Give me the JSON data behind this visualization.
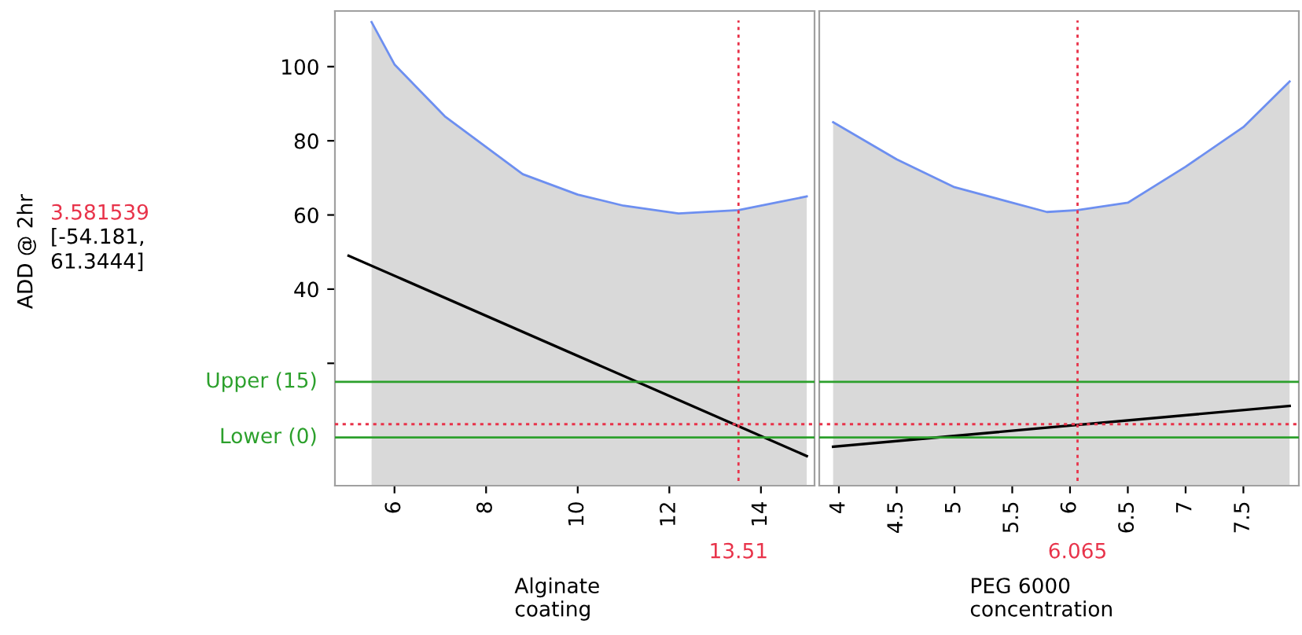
{
  "chart_data": [
    {
      "type": "line",
      "ylabel": "ADD @ 2hr",
      "xlabel": "Alginate\ncoating",
      "xlim": [
        4.7,
        15.17
      ],
      "xticks": [
        6,
        8,
        10,
        12,
        14
      ],
      "ylim": [
        -13,
        115
      ],
      "yticks": [
        {
          "value": 20,
          "label": null
        },
        40,
        60,
        80,
        100
      ],
      "grid": false,
      "legend": false,
      "series": [
        {
          "type": "area",
          "color": "#6d8ff0",
          "x": [
            5.5,
            6,
            7.1,
            8.8,
            10,
            11,
            12.2,
            13.51,
            15
          ],
          "values": [
            112,
            100.6,
            86.6,
            71,
            65.5,
            62.5,
            60.4,
            61.3,
            65
          ]
        },
        {
          "color": "#000000",
          "x": [
            5,
            15
          ],
          "values": [
            49,
            -5
          ]
        }
      ],
      "ref_lines": [
        {
          "axis": "y",
          "value": 15,
          "label": "Upper (15)",
          "color": "#2ca02c",
          "line_style": "solid"
        },
        {
          "axis": "y",
          "value": 0,
          "label": "Lower (0)",
          "color": "#2ca02c",
          "line_style": "solid"
        },
        {
          "axis": "y",
          "value": 3.581539,
          "label": "3.581539",
          "color": "#e8334a",
          "line_style": "dotted"
        },
        {
          "axis": "x",
          "value": 13.51,
          "label": "13.51",
          "color": "#e8334a",
          "line_style": "dotted"
        }
      ],
      "bands": [
        {
          "axis": "y",
          "from": -13,
          "to": 0,
          "color": "#d9d9d9"
        }
      ],
      "annotations": [
        "[-54.181,\n61.3444]"
      ]
    },
    {
      "type": "line",
      "xlabel": "PEG 6000\nconcentration",
      "xlim": [
        3.83,
        7.98
      ],
      "xticks": [
        4,
        4.5,
        5,
        5.5,
        6,
        6.5,
        7,
        7.5
      ],
      "ylim": [
        -13,
        115
      ],
      "tick_labels": "x",
      "grid": false,
      "legend": false,
      "series": [
        {
          "type": "area",
          "color": "#6d8ff0",
          "x": [
            3.95,
            4.5,
            5,
            5.8,
            6.065,
            6.5,
            7,
            7.5,
            7.9
          ],
          "values": [
            85,
            75,
            67.5,
            60.8,
            61.3,
            63.3,
            73,
            83.7,
            96
          ]
        },
        {
          "color": "#000000",
          "x": [
            3.95,
            7.9
          ],
          "values": [
            -2.5,
            8.5
          ]
        }
      ],
      "ref_lines": [
        {
          "axis": "y",
          "value": 15,
          "color": "#2ca02c",
          "line_style": "solid"
        },
        {
          "axis": "y",
          "value": 0,
          "color": "#2ca02c",
          "line_style": "solid"
        },
        {
          "axis": "y",
          "value": 3.581539,
          "color": "#e8334a",
          "line_style": "dotted"
        },
        {
          "axis": "x",
          "value": 6.065,
          "label": "6.065",
          "color": "#e8334a",
          "line_style": "dotted"
        }
      ],
      "bands": [
        {
          "axis": "y",
          "from": -13,
          "to": 0,
          "color": "#d9d9d9"
        }
      ]
    }
  ]
}
